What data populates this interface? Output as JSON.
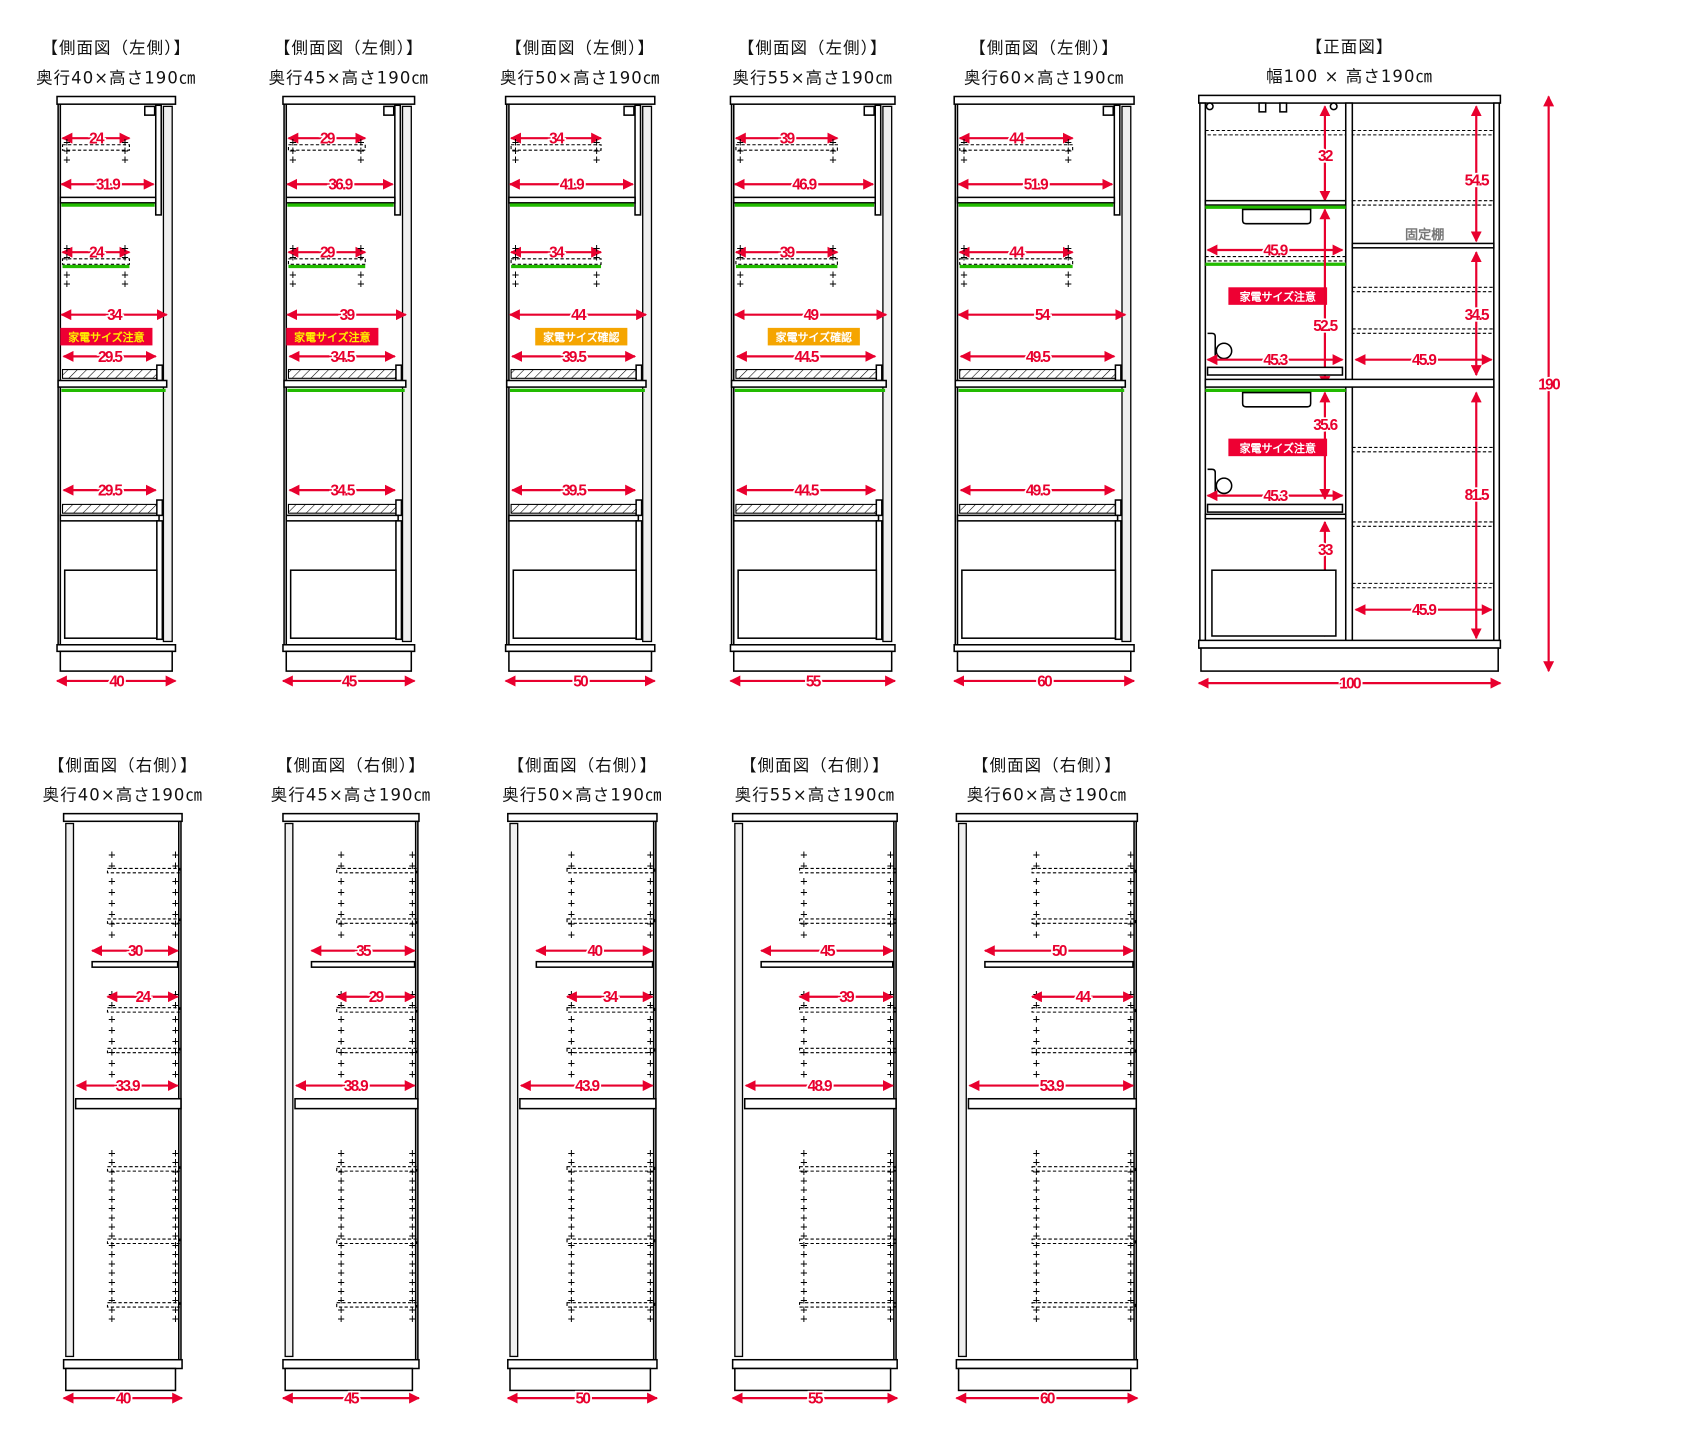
{
  "left_views": [
    {
      "heading": "【側面図（左側）】",
      "subtitle": "奥行40×高さ190㎝",
      "depth": 40,
      "upper_adj": 24,
      "upper_shelf": 31.9,
      "lower_adj": 24,
      "inner": 34,
      "tray_upper": 29.5,
      "tray_lower": 29.5,
      "badge": "家電サイズ注意",
      "badge_type": "caution"
    },
    {
      "heading": "【側面図（左側）】",
      "subtitle": "奥行45×高さ190㎝",
      "depth": 45,
      "upper_adj": 29,
      "upper_shelf": 36.9,
      "lower_adj": 29,
      "inner": 39,
      "tray_upper": 34.5,
      "tray_lower": 34.5,
      "badge": "家電サイズ注意",
      "badge_type": "caution"
    },
    {
      "heading": "【側面図（左側）】",
      "subtitle": "奥行50×高さ190㎝",
      "depth": 50,
      "upper_adj": 34,
      "upper_shelf": 41.9,
      "lower_adj": 34,
      "inner": 44,
      "tray_upper": 39.5,
      "tray_lower": 39.5,
      "badge": "家電サイズ確認",
      "badge_type": "check"
    },
    {
      "heading": "【側面図（左側）】",
      "subtitle": "奥行55×高さ190㎝",
      "depth": 55,
      "upper_adj": 39,
      "upper_shelf": 46.9,
      "lower_adj": 39,
      "inner": 49,
      "tray_upper": 44.5,
      "tray_lower": 44.5,
      "badge": "家電サイズ確認",
      "badge_type": "check"
    },
    {
      "heading": "【側面図（左側）】",
      "subtitle": "奥行60×高さ190㎝",
      "depth": 60,
      "upper_adj": 44,
      "upper_shelf": 51.9,
      "lower_adj": 44,
      "inner": 54,
      "tray_upper": 49.5,
      "tray_lower": 49.5,
      "badge": null,
      "badge_type": null
    }
  ],
  "right_views": [
    {
      "heading": "【側面図（右側）】",
      "subtitle": "奥行40×高さ190㎝",
      "depth": 40,
      "fixed_shelf": 30,
      "adj_shelf": 24,
      "mid_shelf": 33.9
    },
    {
      "heading": "【側面図（右側）】",
      "subtitle": "奥行45×高さ190㎝",
      "depth": 45,
      "fixed_shelf": 35,
      "adj_shelf": 29,
      "mid_shelf": 38.9
    },
    {
      "heading": "【側面図（右側）】",
      "subtitle": "奥行50×高さ190㎝",
      "depth": 50,
      "fixed_shelf": 40,
      "adj_shelf": 34,
      "mid_shelf": 43.9
    },
    {
      "heading": "【側面図（右側）】",
      "subtitle": "奥行55×高さ190㎝",
      "depth": 55,
      "fixed_shelf": 45,
      "adj_shelf": 39,
      "mid_shelf": 48.9
    },
    {
      "heading": "【側面図（右側）】",
      "subtitle": "奥行60×高さ190㎝",
      "depth": 60,
      "fixed_shelf": 50,
      "adj_shelf": 44,
      "mid_shelf": 53.9
    }
  ],
  "front_view": {
    "heading": "【正面図】",
    "subtitle": "幅100 × 高さ190㎝",
    "width": 100,
    "height": 190,
    "left_column": {
      "top_space": 32,
      "shelf_width": 45.9,
      "upper_appliance": 52.5,
      "tray_upper": 45.3,
      "lower_appliance": 35.6,
      "tray_lower": 45.3,
      "bottom_space": 33
    },
    "right_column": {
      "upper_space": 54.5,
      "fixed_shelf_label": "固定棚",
      "middle_space": 34.5,
      "shelf_width_upper": 45.9,
      "lower_space": 81.5,
      "shelf_width_lower": 45.9
    },
    "badges": [
      "家電サイズ注意",
      "家電サイズ注意"
    ]
  },
  "colors": {
    "dimension": "#e8002e",
    "caution_badge": "#ee0033",
    "check_badge": "#f5a500",
    "shelf_edge": "#22bb00",
    "panel": "#efefef"
  }
}
